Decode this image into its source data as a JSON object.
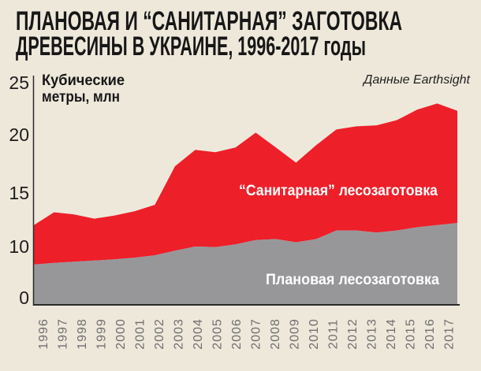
{
  "title": {
    "line1": "ПЛАНОВАЯ И “САНИТАРНАЯ” ЗАГОТОВКА",
    "line2": "ДРЕВЕСИНЫ В УКРАИНЕ, 1996-2017 годы"
  },
  "source_note": "Данные Earthsight",
  "y_axis": {
    "unit_line1": "Кубические",
    "unit_line2": "метры, млн",
    "ticks": [
      0,
      10,
      15,
      20,
      25
    ]
  },
  "legend": {
    "sanitary": "“Санитарная” лесозаготовка",
    "planned": "Плановая лесозаготовка"
  },
  "colors": {
    "background": "#eee8db",
    "red": "#ed1f29",
    "gray": "#97979a",
    "axis": "#2b2b2b",
    "year_labels": "#6f6f6f",
    "title_text": "#171717",
    "legend_text": "#ffffff"
  },
  "chart_data": {
    "type": "area",
    "stacked": true,
    "title": "Плановая и “санитарная” заготовка древесины в Украине, 1996-2017 годы",
    "ylabel": "Кубические метры, млн",
    "source": "Данные Earthsight",
    "x": [
      1996,
      1997,
      1998,
      1999,
      2000,
      2001,
      2002,
      2003,
      2004,
      2005,
      2006,
      2007,
      2008,
      2009,
      2010,
      2011,
      2012,
      2013,
      2014,
      2015,
      2016,
      2017
    ],
    "series": [
      {
        "name": "Плановая лесозаготовка",
        "color": "#97979a",
        "values": [
          6.9,
          7.2,
          7.4,
          7.6,
          7.8,
          8.1,
          8.5,
          9.3,
          10.0,
          9.9,
          10.2,
          10.6,
          10.7,
          10.4,
          10.7,
          11.5,
          11.5,
          11.3,
          11.5,
          11.8,
          12.0,
          12.2
        ]
      },
      {
        "name": "“Санитарная” лесозаготовка",
        "color": "#ed1f29",
        "values": [
          5.1,
          6.0,
          5.6,
          5.0,
          5.1,
          5.2,
          5.4,
          8.0,
          8.7,
          8.6,
          8.7,
          9.6,
          8.2,
          7.2,
          8.4,
          9.0,
          9.3,
          9.6,
          9.9,
          10.6,
          11.0,
          10.1
        ]
      }
    ],
    "totals": [
      12.0,
      13.2,
      13.0,
      12.6,
      12.9,
      13.3,
      13.9,
      17.3,
      18.7,
      18.5,
      18.9,
      20.2,
      18.9,
      17.6,
      19.1,
      20.5,
      20.8,
      20.9,
      21.4,
      22.4,
      23.0,
      22.3
    ],
    "y_ticks": [
      0,
      10,
      15,
      20,
      25
    ],
    "ylim": [
      0,
      25
    ],
    "grid": false,
    "legend_position": "inside",
    "axis_note": "y tick labels are equally spaced in the original graphic, so the 0-10 segment is compressed relative to 10-25"
  }
}
